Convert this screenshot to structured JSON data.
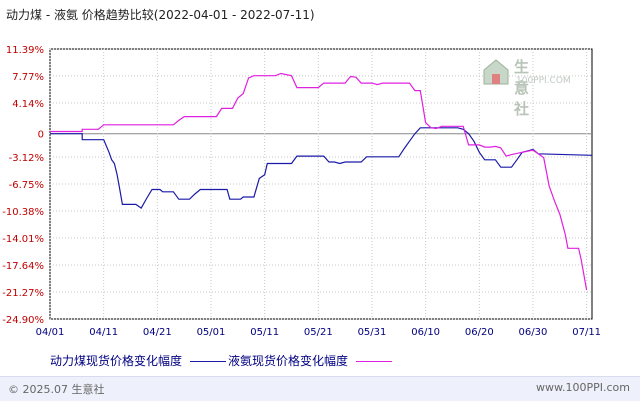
{
  "title": "动力煤 - 液氨 价格趋势比较",
  "date_range": "(2022-04-01 - 2022-07-11)",
  "watermark": {
    "name": "生意社",
    "url": "100PPI.COM"
  },
  "footer": {
    "copyright": "© 2025.07 生意社",
    "site": "www.100PPI.com"
  },
  "colors": {
    "series1": "#1a1aa8",
    "series2": "#e020e0",
    "axis": "#000000",
    "grid": "#c8c8c8",
    "zero": "#888888",
    "label": "#c00000",
    "xlabel": "#000080"
  },
  "chart_data": {
    "type": "line",
    "xlabel": "",
    "ylabel": "",
    "x_domain_days": [
      0,
      101
    ],
    "ylim": [
      -24.9,
      11.39
    ],
    "y_ticks": [
      {
        "value": 11.39,
        "label": "11.39%"
      },
      {
        "value": 7.77,
        "label": "7.77%"
      },
      {
        "value": 4.14,
        "label": "4.14%"
      },
      {
        "value": 0,
        "label": "0"
      },
      {
        "value": -3.12,
        "label": "-3.12%"
      },
      {
        "value": -6.75,
        "label": "-6.75%"
      },
      {
        "value": -10.38,
        "label": "-10.38%"
      },
      {
        "value": -14.01,
        "label": "-14.01%"
      },
      {
        "value": -17.64,
        "label": "-17.64%"
      },
      {
        "value": -21.27,
        "label": "-21.27%"
      },
      {
        "value": -24.9,
        "label": "-24.90%"
      }
    ],
    "x_ticks": [
      {
        "day": 0,
        "label": "04/01"
      },
      {
        "day": 10,
        "label": "04/11"
      },
      {
        "day": 20,
        "label": "04/21"
      },
      {
        "day": 30,
        "label": "05/01"
      },
      {
        "day": 40,
        "label": "05/11"
      },
      {
        "day": 50,
        "label": "05/21"
      },
      {
        "day": 60,
        "label": "05/31"
      },
      {
        "day": 70,
        "label": "06/10"
      },
      {
        "day": 80,
        "label": "06/20"
      },
      {
        "day": 90,
        "label": "06/30"
      },
      {
        "day": 100,
        "label": "07/11"
      }
    ],
    "grid": true,
    "legend": "bottom",
    "series": [
      {
        "name": "动力煤现货价格变化幅度",
        "points": [
          [
            0,
            0
          ],
          [
            6,
            0
          ],
          [
            6,
            -0.8
          ],
          [
            10,
            -0.8
          ],
          [
            11,
            -2.5
          ],
          [
            11.5,
            -3.5
          ],
          [
            12,
            -4
          ],
          [
            12.5,
            -5.5
          ],
          [
            13,
            -7.5
          ],
          [
            13.5,
            -9.5
          ],
          [
            16,
            -9.5
          ],
          [
            17,
            -10
          ],
          [
            18,
            -8.7
          ],
          [
            19,
            -7.5
          ],
          [
            20.5,
            -7.5
          ],
          [
            21,
            -7.8
          ],
          [
            23,
            -7.8
          ],
          [
            24,
            -8.8
          ],
          [
            26,
            -8.8
          ],
          [
            27,
            -8.1
          ],
          [
            28,
            -7.5
          ],
          [
            33,
            -7.5
          ],
          [
            33.5,
            -8.8
          ],
          [
            35.5,
            -8.8
          ],
          [
            36,
            -8.5
          ],
          [
            38,
            -8.5
          ],
          [
            39,
            -6
          ],
          [
            40,
            -5.5
          ],
          [
            40.5,
            -4
          ],
          [
            45,
            -4
          ],
          [
            46,
            -3
          ],
          [
            51,
            -3
          ],
          [
            52,
            -3.8
          ],
          [
            53,
            -3.8
          ],
          [
            54,
            -4
          ],
          [
            55,
            -3.8
          ],
          [
            58,
            -3.8
          ],
          [
            59,
            -3.1
          ],
          [
            65,
            -3.1
          ],
          [
            66,
            -2
          ],
          [
            67,
            -1
          ],
          [
            68,
            0
          ],
          [
            69,
            0.8
          ],
          [
            76,
            0.8
          ],
          [
            77,
            0.6
          ],
          [
            78,
            0
          ],
          [
            79,
            -1
          ],
          [
            80,
            -2.5
          ],
          [
            81,
            -3.5
          ],
          [
            83,
            -3.5
          ],
          [
            84,
            -4.5
          ],
          [
            86,
            -4.5
          ],
          [
            87,
            -3.5
          ],
          [
            88,
            -2.5
          ],
          [
            89,
            -2.3
          ],
          [
            90,
            -2.1
          ],
          [
            91,
            -2.7
          ],
          [
            101,
            -2.9
          ]
        ]
      },
      {
        "name": "液氨现货价格变化幅度",
        "points": [
          [
            0,
            0.3
          ],
          [
            6,
            0.3
          ],
          [
            6,
            0.6
          ],
          [
            9,
            0.6
          ],
          [
            10,
            1.2
          ],
          [
            23,
            1.2
          ],
          [
            24,
            1.8
          ],
          [
            25,
            2.3
          ],
          [
            31,
            2.3
          ],
          [
            32,
            3.4
          ],
          [
            33,
            3.4
          ],
          [
            34,
            3.4
          ],
          [
            35,
            4.8
          ],
          [
            36,
            5.4
          ],
          [
            37,
            7.5
          ],
          [
            38,
            7.8
          ],
          [
            42,
            7.8
          ],
          [
            43,
            8.1
          ],
          [
            45,
            7.8
          ],
          [
            46,
            6.2
          ],
          [
            50,
            6.2
          ],
          [
            51,
            6.8
          ],
          [
            55,
            6.8
          ],
          [
            56,
            7.7
          ],
          [
            57,
            7.6
          ],
          [
            58,
            6.8
          ],
          [
            60,
            6.8
          ],
          [
            61,
            6.6
          ],
          [
            62,
            6.8
          ],
          [
            67,
            6.8
          ],
          [
            68,
            5.8
          ],
          [
            69,
            5.8
          ],
          [
            70,
            1.5
          ],
          [
            71,
            0.8
          ],
          [
            72,
            0.7
          ],
          [
            73,
            1
          ],
          [
            77,
            1
          ],
          [
            78,
            -1.5
          ],
          [
            80,
            -1.5
          ],
          [
            81,
            -1.8
          ],
          [
            82,
            -1.8
          ],
          [
            83,
            -1.7
          ],
          [
            84,
            -1.9
          ],
          [
            85,
            -3
          ],
          [
            86,
            -2.8
          ],
          [
            88,
            -2.5
          ],
          [
            90,
            -2.2
          ],
          [
            92,
            -3.2
          ],
          [
            93,
            -7
          ],
          [
            94,
            -9
          ],
          [
            95,
            -10.8
          ],
          [
            96,
            -13.5
          ],
          [
            96.5,
            -15.4
          ],
          [
            98.5,
            -15.4
          ],
          [
            99,
            -17
          ],
          [
            100,
            -21
          ]
        ]
      }
    ]
  }
}
